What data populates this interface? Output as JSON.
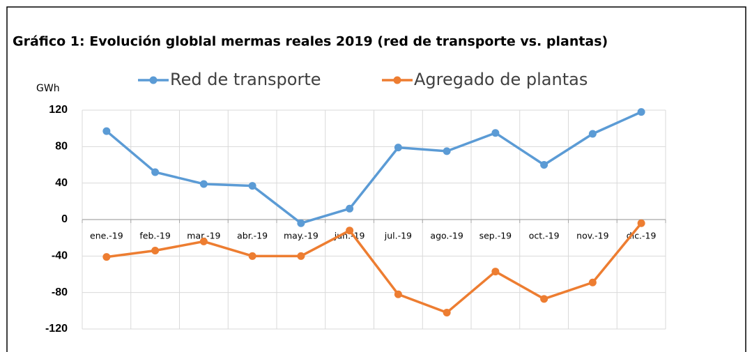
{
  "chart_data": {
    "type": "line",
    "title": "Gráfico 1: Evolución globlal mermas reales 2019 (red de transporte vs. plantas)",
    "y_label": "GWh",
    "categories": [
      "ene.-19",
      "feb.-19",
      "mar.-19",
      "abr.-19",
      "may.-19",
      "jun.-19",
      "jul.-19",
      "ago.-19",
      "sep.-19",
      "oct.-19",
      "nov.-19",
      "dic.-19"
    ],
    "series": [
      {
        "name": "Red de transporte",
        "color": "#5b9bd5",
        "values": [
          97,
          52,
          39,
          37,
          -4,
          12,
          79,
          75,
          95,
          60,
          94,
          118
        ]
      },
      {
        "name": "Agregado de plantas",
        "color": "#ed7d31",
        "values": [
          -41,
          -34,
          -24,
          -40,
          -40,
          -12,
          -82,
          -102,
          -57,
          -87,
          -69,
          -4
        ]
      }
    ],
    "ylim": [
      -120,
      120
    ],
    "yticks": [
      -120,
      -80,
      -40,
      0,
      40,
      80,
      120
    ],
    "grid": true,
    "legend": "top"
  }
}
